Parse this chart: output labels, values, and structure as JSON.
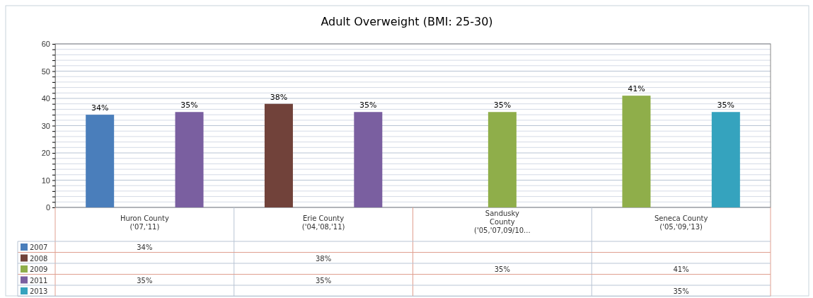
{
  "chart_data": {
    "type": "bar",
    "title": "Adult Overweight (BMI: 25-30)",
    "categories": [
      "Huron County\n('07,'11)",
      "Erie County\n('04,'08,'11)",
      "Sandusky\nCounty\n('05,'07,09/10...",
      "Seneca County\n('05,'09,'13)"
    ],
    "series": [
      {
        "name": "2007",
        "color": "#4a7ebb",
        "values": [
          34,
          null,
          null,
          null
        ],
        "value_labels": [
          "34%",
          null,
          null,
          null
        ]
      },
      {
        "name": "2008",
        "color": "#71423a",
        "values": [
          null,
          38,
          null,
          null
        ],
        "value_labels": [
          null,
          "38%",
          null,
          null
        ]
      },
      {
        "name": "2009",
        "color": "#8fae4a",
        "values": [
          null,
          null,
          35,
          41
        ],
        "value_labels": [
          null,
          null,
          "35%",
          "41%"
        ]
      },
      {
        "name": "2011",
        "color": "#7a5fa0",
        "values": [
          35,
          35,
          null,
          null
        ],
        "value_labels": [
          "35%",
          "35%",
          null,
          null
        ]
      },
      {
        "name": "2013",
        "color": "#35a3be",
        "values": [
          null,
          null,
          null,
          35
        ],
        "value_labels": [
          null,
          null,
          null,
          "35%"
        ]
      }
    ],
    "ylim": [
      0,
      60
    ],
    "yticks": [
      0,
      {
        "value": 2,
        "label": null
      },
      {
        "value": 4,
        "label": null
      },
      {
        "value": 6,
        "label": null
      },
      {
        "value": 8,
        "label": null
      },
      10,
      {
        "value": 12,
        "label": null
      },
      {
        "value": 14,
        "label": null
      },
      {
        "value": 16,
        "label": null
      },
      {
        "value": 18,
        "label": null
      },
      20,
      {
        "value": 22,
        "label": null
      },
      {
        "value": 24,
        "label": null
      },
      {
        "value": 26,
        "label": null
      },
      {
        "value": 28,
        "label": null
      },
      30,
      {
        "value": 32,
        "label": null
      },
      {
        "value": 34,
        "label": null
      },
      {
        "value": 36,
        "label": null
      },
      {
        "value": 38,
        "label": null
      },
      40,
      {
        "value": 42,
        "label": null
      },
      {
        "value": 44,
        "label": null
      },
      {
        "value": 46,
        "label": null
      },
      {
        "value": 48,
        "label": null
      },
      50,
      {
        "value": 52,
        "label": null
      },
      {
        "value": 54,
        "label": null
      },
      {
        "value": 56,
        "label": null
      },
      {
        "value": 58,
        "label": null
      },
      60
    ],
    "grid": "y",
    "legend": "bottom"
  }
}
